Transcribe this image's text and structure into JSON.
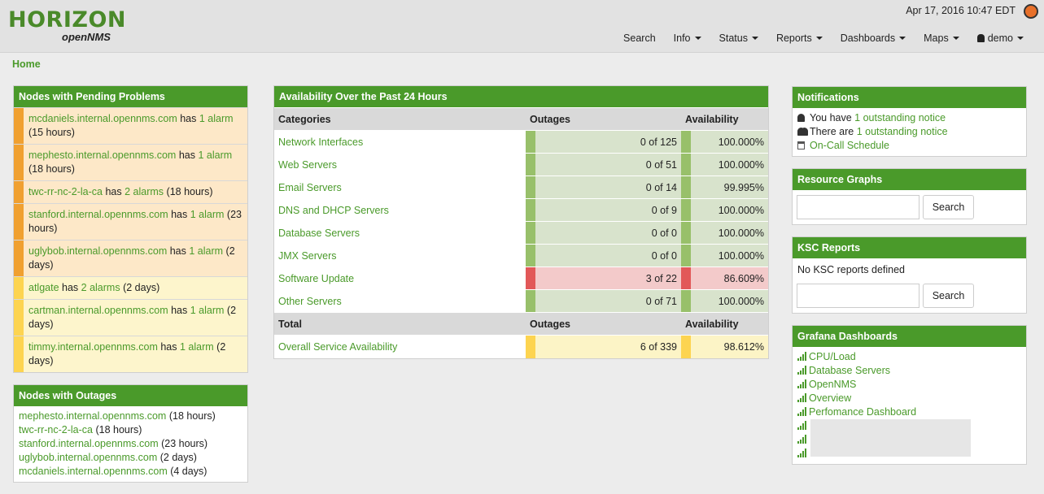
{
  "header": {
    "logo": "HORIZON",
    "logo_sub": "openNMS",
    "datetime": "Apr 17, 2016 10:47 EDT",
    "nav": [
      {
        "label": "Search",
        "dropdown": false
      },
      {
        "label": "Info",
        "dropdown": true
      },
      {
        "label": "Status",
        "dropdown": true
      },
      {
        "label": "Reports",
        "dropdown": true
      },
      {
        "label": "Dashboards",
        "dropdown": true
      },
      {
        "label": "Maps",
        "dropdown": true
      },
      {
        "label": "demo",
        "dropdown": true
      }
    ]
  },
  "breadcrumb": "Home",
  "pending_problems": {
    "title": "Nodes with Pending Problems",
    "items": [
      {
        "node": "mcdaniels.internal.opennms.com",
        "connector": "has",
        "alarms": "1 alarm",
        "time": "(15 hours)",
        "color": "#f0a030",
        "background": "#fde8c8"
      },
      {
        "node": "mephesto.internal.opennms.com",
        "connector": "has",
        "alarms": "1 alarm",
        "time": "(18 hours)",
        "color": "#f0a030",
        "background": "#fde8c8"
      },
      {
        "node": "twc-rr-nc-2-la-ca",
        "connector": "has",
        "alarms": "2 alarms",
        "time": "(18 hours)",
        "color": "#f0a030",
        "background": "#fde8c8"
      },
      {
        "node": "stanford.internal.opennms.com",
        "connector": "has",
        "alarms": "1 alarm",
        "time": "(23 hours)",
        "color": "#f0a030",
        "background": "#fde8c8"
      },
      {
        "node": "uglybob.internal.opennms.com",
        "connector": "has",
        "alarms": "1 alarm",
        "time": "(2 days)",
        "color": "#f0a030",
        "background": "#fde8c8"
      },
      {
        "node": "atlgate",
        "connector": "has",
        "alarms": "2 alarms",
        "time": "(2 days)",
        "color": "#fdd450",
        "background": "#fdf5cc"
      },
      {
        "node": "cartman.internal.opennms.com",
        "connector": "has",
        "alarms": "1 alarm",
        "time": "(2 days)",
        "color": "#fdd450",
        "background": "#fdf5cc"
      },
      {
        "node": "timmy.internal.opennms.com",
        "connector": "has",
        "alarms": "1 alarm",
        "time": "(2 days)",
        "color": "#fdd450",
        "background": "#fdf5cc"
      }
    ]
  },
  "outages": {
    "title": "Nodes with Outages",
    "items": [
      {
        "node": "mephesto.internal.opennms.com",
        "time": "(18 hours)"
      },
      {
        "node": "twc-rr-nc-2-la-ca",
        "time": "(18 hours)"
      },
      {
        "node": "stanford.internal.opennms.com",
        "time": "(23 hours)"
      },
      {
        "node": "uglybob.internal.opennms.com",
        "time": "(2 days)"
      },
      {
        "node": "mcdaniels.internal.opennms.com",
        "time": "(4 days)"
      }
    ]
  },
  "availability": {
    "title": "Availability Over the Past 24 Hours",
    "header": [
      "Categories",
      "Outages",
      "Availability"
    ],
    "rows": [
      {
        "category": "Network Interfaces",
        "outages": "0 of 125",
        "availability": "100.000%",
        "color": "#98c06a",
        "background": "#d8e3cc"
      },
      {
        "category": "Web Servers",
        "outages": "0 of 51",
        "availability": "100.000%",
        "color": "#98c06a",
        "background": "#d8e3cc"
      },
      {
        "category": "Email Servers",
        "outages": "0 of 14",
        "availability": "99.995%",
        "color": "#98c06a",
        "background": "#d8e3cc"
      },
      {
        "category": "DNS and DHCP Servers",
        "outages": "0 of 9",
        "availability": "100.000%",
        "color": "#98c06a",
        "background": "#d8e3cc"
      },
      {
        "category": "Database Servers",
        "outages": "0 of 0",
        "availability": "100.000%",
        "color": "#98c06a",
        "background": "#d8e3cc"
      },
      {
        "category": "JMX Servers",
        "outages": "0 of 0",
        "availability": "100.000%",
        "color": "#98c06a",
        "background": "#d8e3cc"
      },
      {
        "category": "Software Update",
        "outages": "3 of 22",
        "availability": "86.609%",
        "color": "#e25858",
        "background": "#f3caca"
      },
      {
        "category": "Other Servers",
        "outages": "0 of 71",
        "availability": "100.000%",
        "color": "#98c06a",
        "background": "#d8e3cc"
      }
    ],
    "total_header": [
      "Total",
      "Outages",
      "Availability"
    ],
    "total": {
      "category": "Overall Service Availability",
      "outages": "6 of 339",
      "availability": "98.612%",
      "color": "#fdd450",
      "background": "#fcf4c6"
    }
  },
  "notifications": {
    "title": "Notifications",
    "items": [
      {
        "icon": "user",
        "text": "You have",
        "link": "1 outstanding notice"
      },
      {
        "icon": "users",
        "text": "There are",
        "link": "1 outstanding notice"
      },
      {
        "icon": "calendar",
        "link": "On-Call Schedule"
      }
    ]
  },
  "resource_graphs": {
    "title": "Resource Graphs",
    "button": "Search"
  },
  "ksc_reports": {
    "title": "KSC Reports",
    "message": "No KSC reports defined",
    "button": "Search"
  },
  "grafana": {
    "title": "Grafana Dashboards",
    "items": [
      "CPU/Load",
      "Database Servers",
      "OpenNMS",
      "Overview",
      "Perfomance Dashboard"
    ]
  }
}
